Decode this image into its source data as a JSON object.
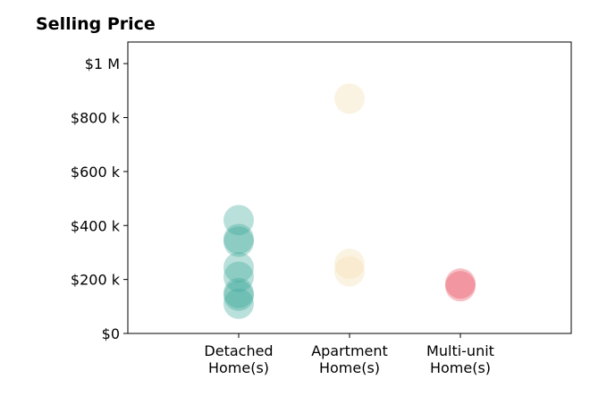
{
  "chart_data": {
    "type": "scatter",
    "title": "Selling Price",
    "xlabel": "",
    "ylabel": "",
    "categories": [
      [
        "Detached",
        "Home(s)"
      ],
      [
        "Apartment",
        "Home(s)"
      ],
      [
        "Multi-unit",
        "Home(s)"
      ]
    ],
    "ylim": [
      0,
      1080000
    ],
    "yticks": [
      0,
      200000,
      400000,
      600000,
      800000,
      1000000
    ],
    "ytick_labels": [
      "$0",
      "$200 k",
      "$400 k",
      "$600 k",
      "$800 k",
      "$1 M"
    ],
    "grid": false,
    "legend": "none",
    "series": [
      {
        "category": 0,
        "color": "#3aa597",
        "values": [
          420000,
          350000,
          340000,
          245000,
          210000,
          150000,
          140000,
          110000
        ]
      },
      {
        "category": 1,
        "color": "#f3dcab",
        "values": [
          870000,
          258000,
          230000
        ]
      },
      {
        "category": 2,
        "color": "#e94b5c",
        "values": [
          185000,
          175000
        ]
      }
    ]
  }
}
